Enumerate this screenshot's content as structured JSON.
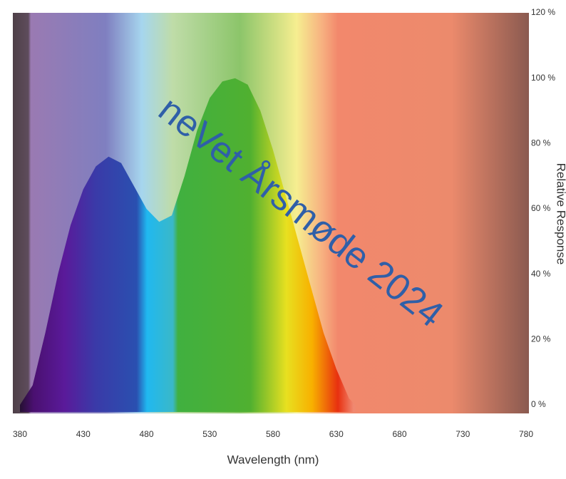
{
  "chart_data": {
    "type": "area",
    "x": [
      380,
      390,
      400,
      410,
      420,
      430,
      440,
      450,
      460,
      470,
      480,
      490,
      500,
      510,
      520,
      530,
      540,
      550,
      560,
      570,
      580,
      590,
      600,
      610,
      620,
      630,
      640,
      645
    ],
    "values": [
      0,
      6,
      22,
      40,
      55,
      66,
      73,
      76,
      74,
      67,
      60,
      56,
      58,
      70,
      84,
      94,
      99,
      100,
      98,
      90,
      78,
      64,
      50,
      36,
      22,
      11,
      2,
      0
    ],
    "xlim": [
      380,
      780
    ],
    "xticks": [
      380,
      430,
      480,
      530,
      580,
      630,
      680,
      730,
      780
    ],
    "ylim": [
      0,
      120
    ],
    "yticks": [
      {
        "value": 0,
        "label": "0 %"
      },
      {
        "value": 20,
        "label": "20 %"
      },
      {
        "value": 40,
        "label": "40 %"
      },
      {
        "value": 60,
        "label": "60 %"
      },
      {
        "value": 80,
        "label": "80 %"
      },
      {
        "value": 100,
        "label": "100 %"
      },
      {
        "value": 120,
        "label": "120 %"
      }
    ],
    "xlabel": "Wavelength (nm)",
    "ylabel": "Relative Response",
    "annotation": "neVet Årsmøde 2024"
  }
}
